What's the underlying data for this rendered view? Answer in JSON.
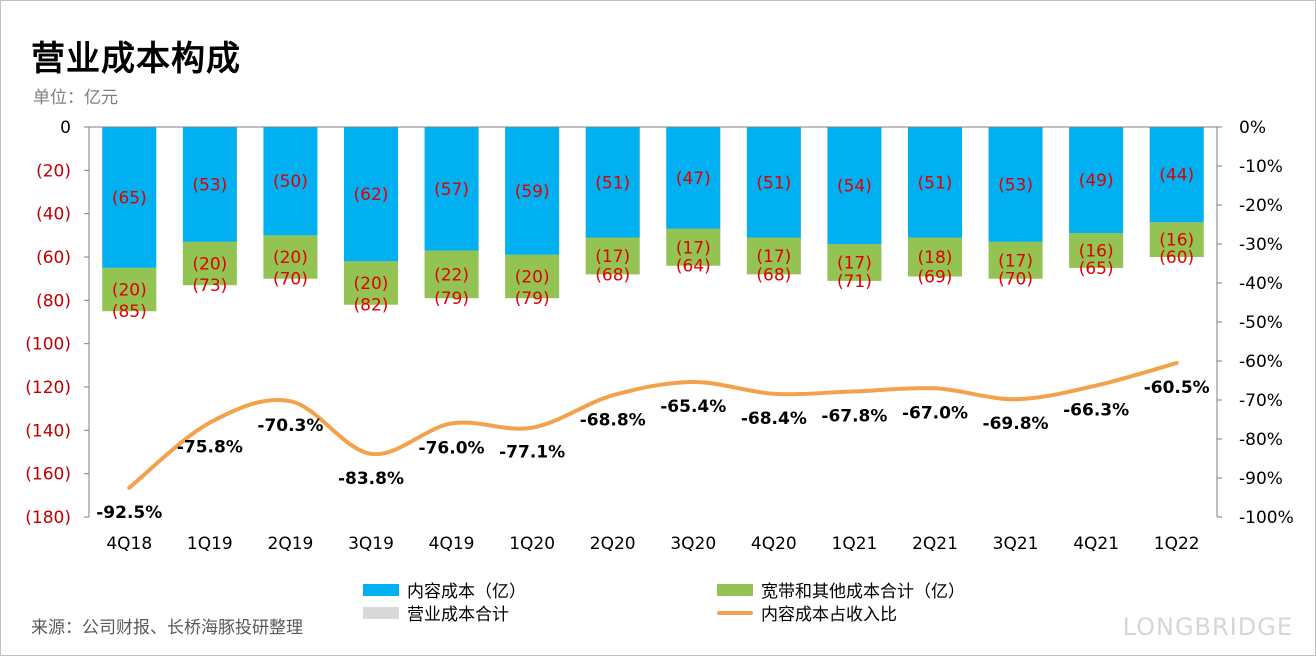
{
  "title": "营业成本构成",
  "unit": "单位：亿元",
  "source": "来源：公司财报、长桥海豚投研整理",
  "watermark": "LONGBRIDGE",
  "colors": {
    "content": "#00b0f0",
    "broadband": "#92c353",
    "total": "#d9d9d9",
    "ratio": "#f4a14b",
    "label_red": "#e00000",
    "axis_red": "#c00000"
  },
  "chart_data": {
    "type": "bar",
    "categories": [
      "4Q18",
      "1Q19",
      "2Q19",
      "3Q19",
      "4Q19",
      "1Q20",
      "2Q20",
      "3Q20",
      "4Q20",
      "1Q21",
      "2Q21",
      "3Q21",
      "4Q21",
      "1Q22"
    ],
    "series": [
      {
        "name": "内容成本（亿）",
        "axis": "left",
        "values": [
          -65,
          -53,
          -50,
          -62,
          -57,
          -59,
          -51,
          -47,
          -51,
          -54,
          -51,
          -53,
          -49,
          -44
        ],
        "labels": [
          "(65)",
          "(53)",
          "(50)",
          "(62)",
          "(57)",
          "(59)",
          "(51)",
          "(47)",
          "(51)",
          "(54)",
          "(51)",
          "(53)",
          "(49)",
          "(44)"
        ]
      },
      {
        "name": "宽带和其他成本合计（亿）",
        "axis": "left",
        "values": [
          -20,
          -20,
          -20,
          -20,
          -22,
          -20,
          -17,
          -17,
          -17,
          -17,
          -18,
          -17,
          -16,
          -16
        ],
        "labels": [
          "(20)",
          "(20)",
          "(20)",
          "(20)",
          "(22)",
          "(20)",
          "(17)",
          "(17)",
          "(17)",
          "(17)",
          "(18)",
          "(17)",
          "(16)",
          "(16)"
        ]
      },
      {
        "name": "营业成本合计",
        "axis": "left",
        "values": [
          -85,
          -73,
          -70,
          -82,
          -79,
          -79,
          -68,
          -64,
          -68,
          -71,
          -69,
          -70,
          -65,
          -60
        ],
        "labels": [
          "(85)",
          "(73)",
          "(70)",
          "(82)",
          "(79)",
          "(79)",
          "(68)",
          "(64)",
          "(68)",
          "(71)",
          "(69)",
          "(70)",
          "(65)",
          "(60)"
        ]
      },
      {
        "name": "内容成本占收入比",
        "axis": "right",
        "type": "line",
        "values": [
          -92.5,
          -75.8,
          -70.3,
          -83.8,
          -76.0,
          -77.1,
          -68.8,
          -65.4,
          -68.4,
          -67.8,
          -67.0,
          -69.8,
          -66.3,
          -60.5
        ],
        "labels": [
          "-92.5%",
          "-75.8%",
          "-70.3%",
          "-83.8%",
          "-76.0%",
          "-77.1%",
          "-68.8%",
          "-65.4%",
          "-68.4%",
          "-67.8%",
          "-67.0%",
          "-69.8%",
          "-66.3%",
          "-60.5%"
        ]
      }
    ],
    "y_left": {
      "min": -180,
      "max": 0,
      "ticks": [
        0,
        -20,
        -40,
        -60,
        -80,
        -100,
        -120,
        -140,
        -160,
        -180
      ],
      "tick_labels": [
        "0",
        "(20)",
        "(40)",
        "(60)",
        "(80)",
        "(100)",
        "(120)",
        "(140)",
        "(160)",
        "(180)"
      ]
    },
    "y_right": {
      "min": -100,
      "max": 0,
      "ticks": [
        0,
        -10,
        -20,
        -30,
        -40,
        -50,
        -60,
        -70,
        -80,
        -90,
        -100
      ],
      "tick_labels": [
        "0%",
        "-10%",
        "-20%",
        "-30%",
        "-40%",
        "-50%",
        "-60%",
        "-70%",
        "-80%",
        "-90%",
        "-100%"
      ]
    },
    "grid": false,
    "legend_position": "bottom"
  }
}
